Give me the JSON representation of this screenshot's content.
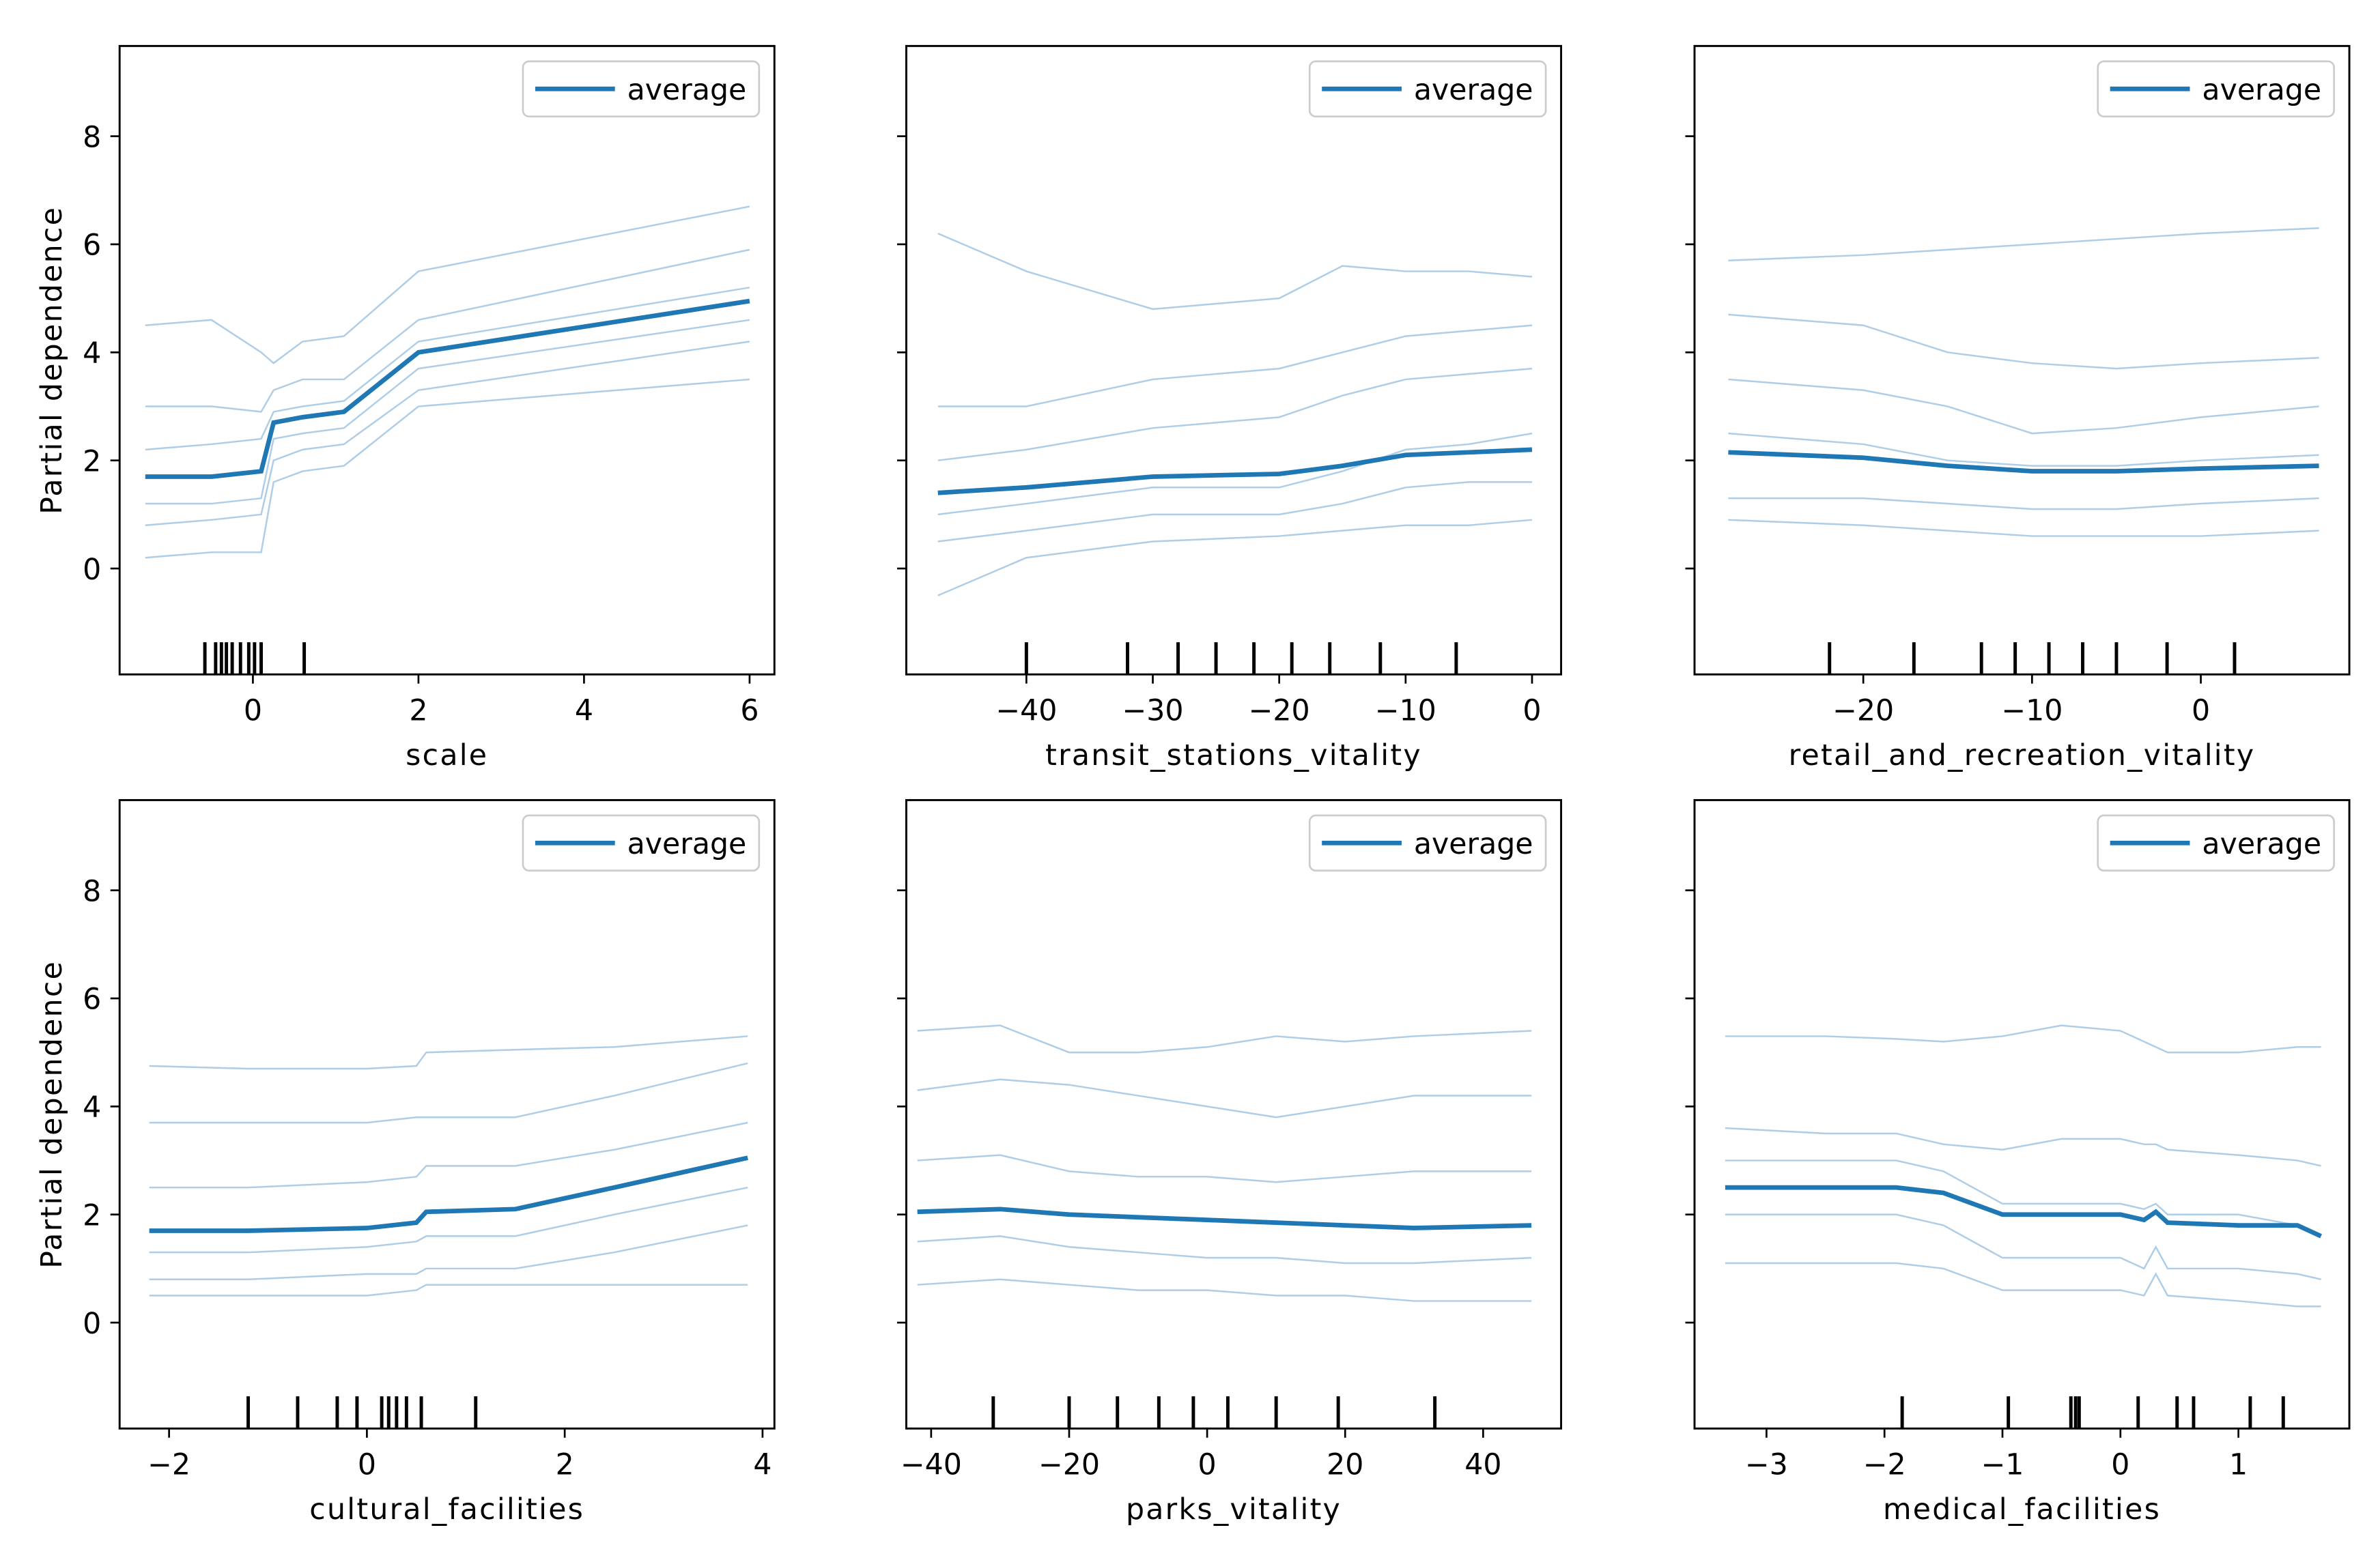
{
  "chart_data": [
    {
      "type": "line",
      "x_label": "scale",
      "y_label": "Partial dependence",
      "legend": "upper right",
      "xlim": [
        -1.61,
        6.3
      ],
      "xticks": [
        0,
        2,
        4,
        6
      ],
      "ylim": [
        -1.96,
        9.67
      ],
      "yticks": [
        0,
        2,
        4,
        6,
        8
      ],
      "x": [
        -1.3,
        -0.5,
        0.1,
        0.25,
        0.6,
        1.1,
        2,
        6
      ],
      "series": [
        {
          "color": "#aecde6",
          "values": [
            4.5,
            4.6,
            4.0,
            3.8,
            4.2,
            4.3,
            5.5,
            6.7
          ]
        },
        {
          "color": "#aecde6",
          "values": [
            3.0,
            3.0,
            2.9,
            3.3,
            3.5,
            3.5,
            4.6,
            5.9
          ]
        },
        {
          "color": "#aecde6",
          "values": [
            2.2,
            2.3,
            2.4,
            2.9,
            3.0,
            3.1,
            4.2,
            5.2
          ]
        },
        {
          "color": "#aecde6",
          "values": [
            1.2,
            1.2,
            1.3,
            2.4,
            2.5,
            2.6,
            3.7,
            4.6
          ]
        },
        {
          "color": "#aecde6",
          "values": [
            0.8,
            0.9,
            1.0,
            2.0,
            2.2,
            2.3,
            3.3,
            4.2
          ]
        },
        {
          "color": "#aecde6",
          "values": [
            0.2,
            0.3,
            0.3,
            1.6,
            1.8,
            1.9,
            3.0,
            3.5
          ]
        },
        {
          "name": "average",
          "color": "#1f77b4",
          "values": [
            1.7,
            1.7,
            1.8,
            2.7,
            2.8,
            2.9,
            4.0,
            4.95
          ]
        }
      ],
      "rug": [
        -0.58,
        -0.45,
        -0.38,
        -0.32,
        -0.25,
        -0.15,
        -0.05,
        0.02,
        0.1,
        0.62
      ]
    },
    {
      "type": "line",
      "x_label": "transit_stations_vitality",
      "legend": "upper right",
      "xlim": [
        -49.5,
        2.3
      ],
      "xticks": [
        {
          "value": -40,
          "label": "−40"
        },
        {
          "value": -30,
          "label": "−30"
        },
        {
          "value": -20,
          "label": "−20"
        },
        {
          "value": -10,
          "label": "−10"
        },
        0
      ],
      "ylim": [
        -1.96,
        9.67
      ],
      "yticks": [
        0,
        2,
        4,
        6,
        8
      ],
      "x": [
        -47,
        -40,
        -30,
        -20,
        -15,
        -10,
        -5,
        0
      ],
      "series": [
        {
          "color": "#aecde6",
          "values": [
            6.2,
            5.5,
            4.8,
            5.0,
            5.6,
            5.5,
            5.5,
            5.4
          ]
        },
        {
          "color": "#aecde6",
          "values": [
            3.0,
            3.0,
            3.5,
            3.7,
            4.0,
            4.3,
            4.4,
            4.5
          ]
        },
        {
          "color": "#aecde6",
          "values": [
            2.0,
            2.2,
            2.6,
            2.8,
            3.2,
            3.5,
            3.6,
            3.7
          ]
        },
        {
          "color": "#aecde6",
          "values": [
            1.0,
            1.2,
            1.5,
            1.5,
            1.8,
            2.2,
            2.3,
            2.5
          ]
        },
        {
          "color": "#aecde6",
          "values": [
            0.5,
            0.7,
            1.0,
            1.0,
            1.2,
            1.5,
            1.6,
            1.6
          ]
        },
        {
          "color": "#aecde6",
          "values": [
            -0.5,
            0.2,
            0.5,
            0.6,
            0.7,
            0.8,
            0.8,
            0.9
          ]
        },
        {
          "name": "average",
          "color": "#1f77b4",
          "values": [
            1.4,
            1.5,
            1.7,
            1.75,
            1.9,
            2.1,
            2.15,
            2.2
          ]
        }
      ],
      "rug": [
        -40,
        -32,
        -28,
        -25,
        -22,
        -19,
        -16,
        -12,
        -6
      ]
    },
    {
      "type": "line",
      "x_label": "retail_and_recreation_vitality",
      "legend": "upper right",
      "xlim": [
        -30,
        8.8
      ],
      "xticks": [
        {
          "value": -20,
          "label": "−20"
        },
        {
          "value": -10,
          "label": "−10"
        },
        0
      ],
      "ylim": [
        -1.96,
        9.67
      ],
      "yticks": [
        0,
        2,
        4,
        6,
        8
      ],
      "x": [
        -28,
        -20,
        -15,
        -10,
        -5,
        0,
        7
      ],
      "series": [
        {
          "color": "#aecde6",
          "values": [
            5.7,
            5.8,
            5.9,
            6.0,
            6.1,
            6.2,
            6.3
          ]
        },
        {
          "color": "#aecde6",
          "values": [
            4.7,
            4.5,
            4.0,
            3.8,
            3.7,
            3.8,
            3.9
          ]
        },
        {
          "color": "#aecde6",
          "values": [
            3.5,
            3.3,
            3.0,
            2.5,
            2.6,
            2.8,
            3.0
          ]
        },
        {
          "color": "#aecde6",
          "values": [
            2.5,
            2.3,
            2.0,
            1.9,
            1.9,
            2.0,
            2.1
          ]
        },
        {
          "color": "#aecde6",
          "values": [
            1.3,
            1.3,
            1.2,
            1.1,
            1.1,
            1.2,
            1.3
          ]
        },
        {
          "color": "#aecde6",
          "values": [
            0.9,
            0.8,
            0.7,
            0.6,
            0.6,
            0.6,
            0.7
          ]
        },
        {
          "name": "average",
          "color": "#1f77b4",
          "values": [
            2.15,
            2.05,
            1.9,
            1.8,
            1.8,
            1.85,
            1.9
          ]
        }
      ],
      "rug": [
        -22,
        -17,
        -13,
        -11,
        -9,
        -7,
        -5,
        -2,
        2
      ]
    },
    {
      "type": "line",
      "x_label": "cultural_facilities",
      "y_label": "Partial dependence",
      "legend": "upper right",
      "xlim": [
        -2.5,
        4.12
      ],
      "xticks": [
        {
          "value": -2,
          "label": "−2"
        },
        0,
        2,
        4
      ],
      "ylim": [
        -1.96,
        9.67
      ],
      "yticks": [
        0,
        2,
        4,
        6,
        8
      ],
      "x": [
        -2.2,
        -1.2,
        0,
        0.5,
        0.6,
        1.5,
        2.5,
        3.85
      ],
      "series": [
        {
          "color": "#aecde6",
          "values": [
            4.75,
            4.7,
            4.7,
            4.75,
            5.0,
            5.05,
            5.1,
            5.3
          ]
        },
        {
          "color": "#aecde6",
          "values": [
            3.7,
            3.7,
            3.7,
            3.8,
            3.8,
            3.8,
            4.2,
            4.8
          ]
        },
        {
          "color": "#aecde6",
          "values": [
            2.5,
            2.5,
            2.6,
            2.7,
            2.9,
            2.9,
            3.2,
            3.7
          ]
        },
        {
          "color": "#aecde6",
          "values": [
            1.3,
            1.3,
            1.4,
            1.5,
            1.6,
            1.6,
            2.0,
            2.5
          ]
        },
        {
          "color": "#aecde6",
          "values": [
            0.8,
            0.8,
            0.9,
            0.9,
            1.0,
            1.0,
            1.3,
            1.8
          ]
        },
        {
          "color": "#aecde6",
          "values": [
            0.5,
            0.5,
            0.5,
            0.6,
            0.7,
            0.7,
            0.7,
            0.7
          ]
        },
        {
          "name": "average",
          "color": "#1f77b4",
          "values": [
            1.7,
            1.7,
            1.75,
            1.85,
            2.05,
            2.1,
            2.5,
            3.05
          ]
        }
      ],
      "rug": [
        -1.2,
        -0.7,
        -0.3,
        -0.1,
        0.15,
        0.22,
        0.3,
        0.4,
        0.55,
        1.1
      ]
    },
    {
      "type": "line",
      "x_label": "parks_vitality",
      "legend": "upper right",
      "xlim": [
        -43.6,
        51.3
      ],
      "xticks": [
        {
          "value": -40,
          "label": "−40"
        },
        {
          "value": -20,
          "label": "−20"
        },
        0,
        20,
        40
      ],
      "ylim": [
        -1.96,
        9.67
      ],
      "yticks": [
        0,
        2,
        4,
        6,
        8
      ],
      "x": [
        -42,
        -30,
        -20,
        -10,
        0,
        10,
        20,
        30,
        47
      ],
      "series": [
        {
          "color": "#aecde6",
          "values": [
            5.4,
            5.5,
            5.0,
            5.0,
            5.1,
            5.3,
            5.2,
            5.3,
            5.4
          ]
        },
        {
          "color": "#aecde6",
          "values": [
            4.3,
            4.5,
            4.4,
            4.2,
            4.0,
            3.8,
            4.0,
            4.2,
            4.2
          ]
        },
        {
          "color": "#aecde6",
          "values": [
            3.0,
            3.1,
            2.8,
            2.7,
            2.7,
            2.6,
            2.7,
            2.8,
            2.8
          ]
        },
        {
          "color": "#aecde6",
          "values": [
            1.5,
            1.6,
            1.4,
            1.3,
            1.2,
            1.2,
            1.1,
            1.1,
            1.2
          ]
        },
        {
          "color": "#aecde6",
          "values": [
            0.7,
            0.8,
            0.7,
            0.6,
            0.6,
            0.5,
            0.5,
            0.4,
            0.4
          ]
        },
        {
          "name": "average",
          "color": "#1f77b4",
          "values": [
            2.05,
            2.1,
            2.0,
            1.95,
            1.9,
            1.85,
            1.8,
            1.75,
            1.8
          ]
        }
      ],
      "rug": [
        -31,
        -20,
        -13,
        -7,
        -2,
        3,
        10,
        19,
        33
      ]
    },
    {
      "type": "line",
      "x_label": "medical_facilities",
      "legend": "upper right",
      "xlim": [
        -3.61,
        1.94
      ],
      "xticks": [
        {
          "value": -3,
          "label": "−3"
        },
        {
          "value": -2,
          "label": "−2"
        },
        {
          "value": -1,
          "label": "−1"
        },
        0,
        1
      ],
      "ylim": [
        -1.96,
        9.67
      ],
      "yticks": [
        0,
        2,
        4,
        6,
        8
      ],
      "x": [
        -3.35,
        -2.5,
        -1.9,
        -1.5,
        -1.0,
        -0.5,
        0,
        0.2,
        0.3,
        0.4,
        1.0,
        1.5,
        1.7
      ],
      "series": [
        {
          "color": "#aecde6",
          "values": [
            5.3,
            5.3,
            5.25,
            5.2,
            5.3,
            5.5,
            5.4,
            5.2,
            5.1,
            5.0,
            5.0,
            5.1,
            5.1
          ]
        },
        {
          "color": "#aecde6",
          "values": [
            3.6,
            3.5,
            3.5,
            3.3,
            3.2,
            3.4,
            3.4,
            3.3,
            3.3,
            3.2,
            3.1,
            3.0,
            2.9
          ]
        },
        {
          "color": "#aecde6",
          "values": [
            3.0,
            3.0,
            3.0,
            2.8,
            2.2,
            2.2,
            2.2,
            2.1,
            2.2,
            2.0,
            2.0,
            1.8,
            1.6
          ]
        },
        {
          "color": "#aecde6",
          "values": [
            2.0,
            2.0,
            2.0,
            1.8,
            1.2,
            1.2,
            1.2,
            1.0,
            1.4,
            1.0,
            1.0,
            0.9,
            0.8
          ]
        },
        {
          "color": "#aecde6",
          "values": [
            1.1,
            1.1,
            1.1,
            1.0,
            0.6,
            0.6,
            0.6,
            0.5,
            0.9,
            0.5,
            0.4,
            0.3,
            0.3
          ]
        },
        {
          "name": "average",
          "color": "#1f77b4",
          "values": [
            2.5,
            2.5,
            2.5,
            2.4,
            2.0,
            2.0,
            2.0,
            1.9,
            2.05,
            1.85,
            1.8,
            1.8,
            1.6
          ]
        }
      ],
      "rug": [
        -1.85,
        -0.95,
        -0.42,
        -0.38,
        -0.35,
        0.15,
        0.48,
        0.62,
        1.1,
        1.38
      ]
    }
  ]
}
